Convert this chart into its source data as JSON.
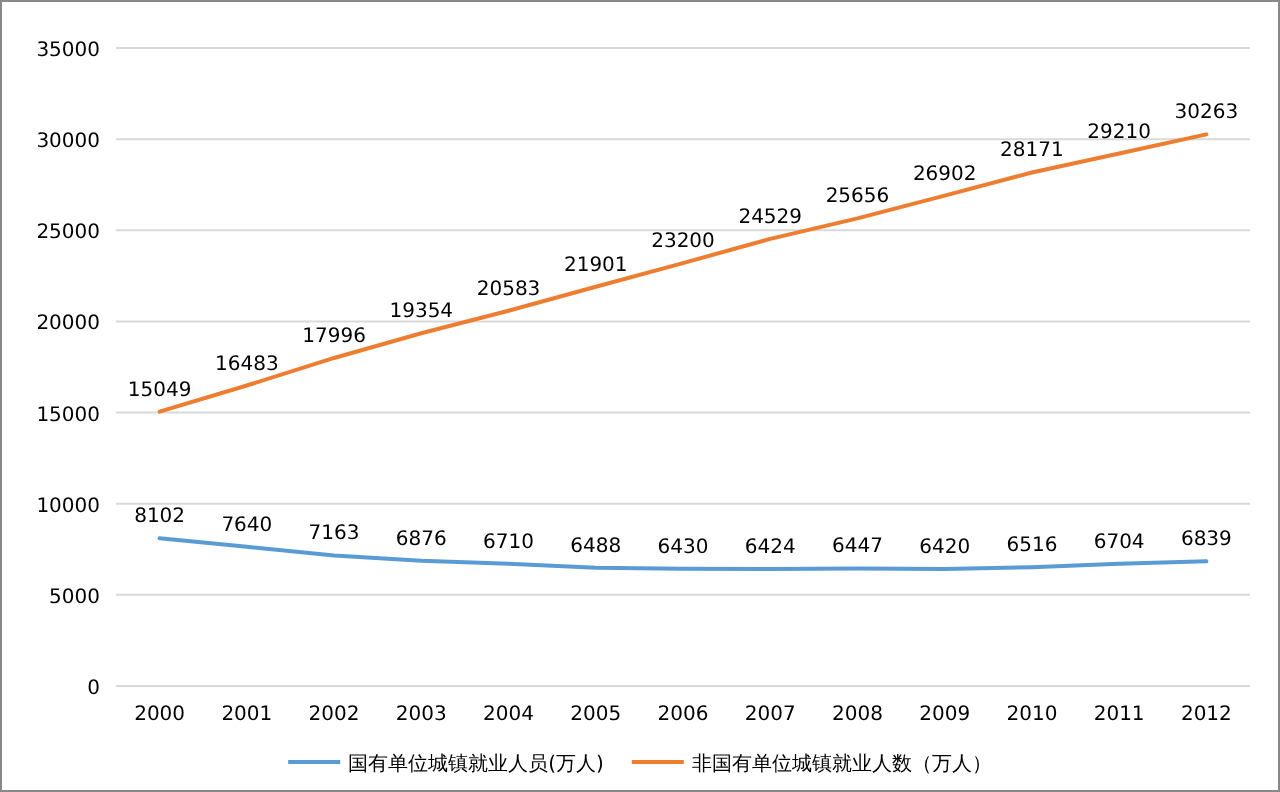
{
  "chart_data": {
    "type": "line",
    "categories": [
      "2000",
      "2001",
      "2002",
      "2003",
      "2004",
      "2005",
      "2006",
      "2007",
      "2008",
      "2009",
      "2010",
      "2011",
      "2012"
    ],
    "series": [
      {
        "name": "国有单位城镇就业人员(万人)",
        "color": "#5b9bd5",
        "values": [
          8102,
          7640,
          7163,
          6876,
          6710,
          6488,
          6430,
          6424,
          6447,
          6420,
          6516,
          6704,
          6839
        ]
      },
      {
        "name": "非国有单位城镇就业人数（万人）",
        "color": "#ed7d31",
        "values": [
          15049,
          16483,
          17996,
          19354,
          20583,
          21901,
          23200,
          24529,
          25656,
          26902,
          28171,
          29210,
          30263
        ]
      }
    ],
    "ylim": [
      0,
      35000
    ],
    "yticks": [
      0,
      5000,
      10000,
      15000,
      20000,
      25000,
      30000,
      35000
    ],
    "grid": "y",
    "legend": "bottom",
    "data_labels": true,
    "marker": "none"
  }
}
